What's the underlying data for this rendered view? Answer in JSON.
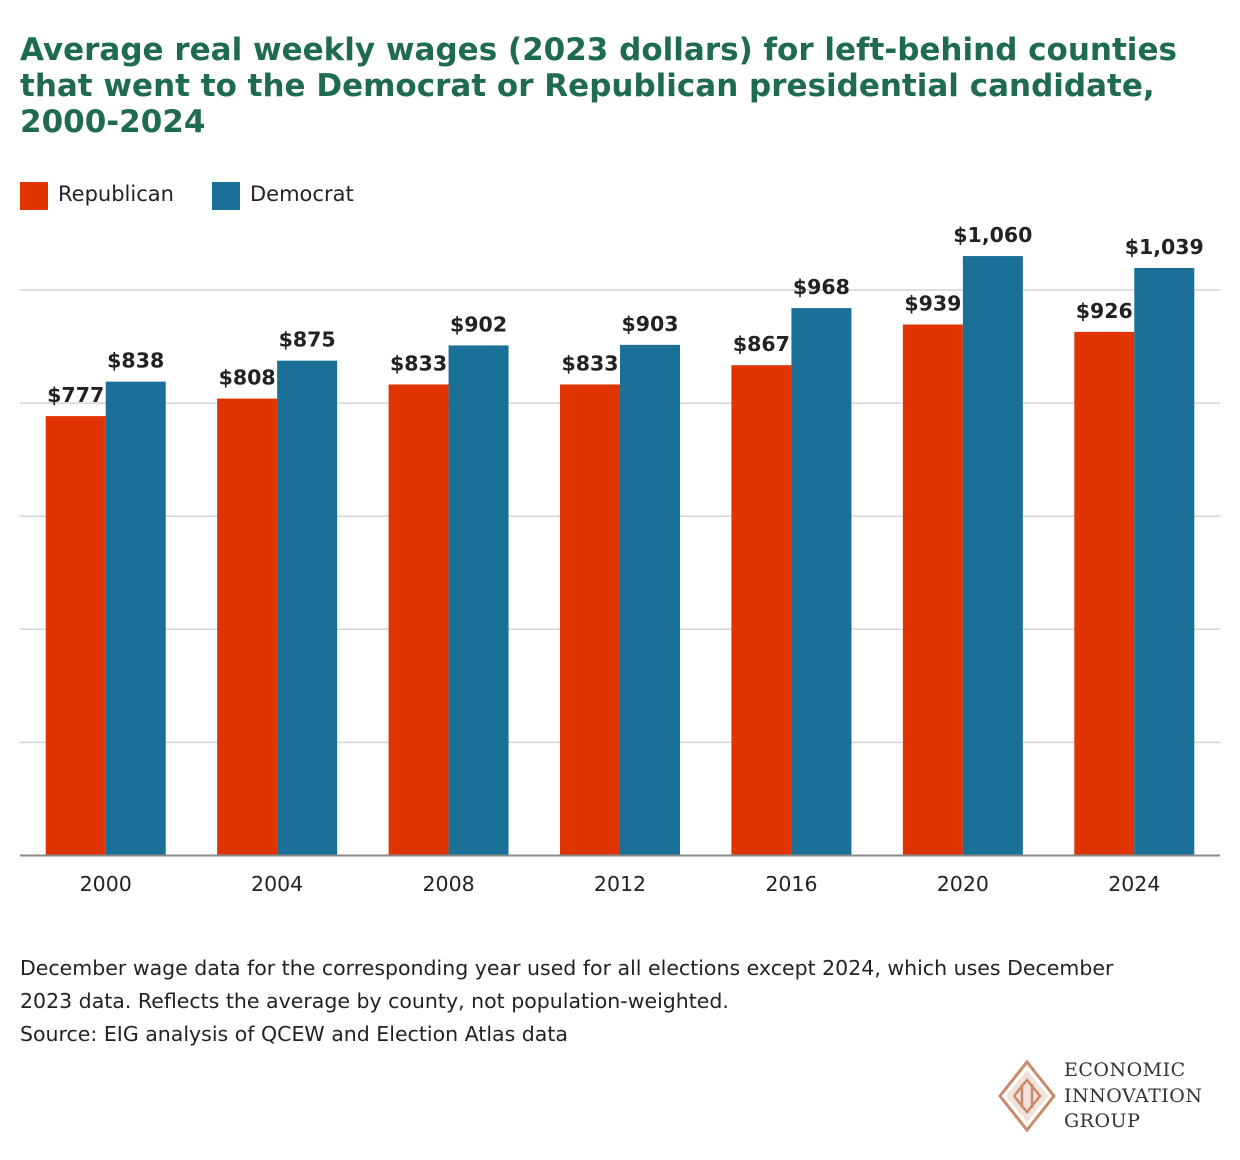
{
  "title": "Average real weekly wages (2023 dollars) for left-behind counties that went to the Democrat or Republican presidential candidate, 2000-2024",
  "legend": [
    {
      "label": "Republican",
      "color": "#e03403"
    },
    {
      "label": "Democrat",
      "color": "#1a7096"
    }
  ],
  "chart_data": {
    "type": "bar",
    "title": "Average real weekly wages (2023 dollars) for left-behind counties that went to the Democrat or Republican presidential candidate, 2000-2024",
    "categories": [
      "2000",
      "2004",
      "2008",
      "2012",
      "2016",
      "2020",
      "2024"
    ],
    "series": [
      {
        "name": "Republican",
        "color": "#e03403",
        "values": [
          777,
          808,
          833,
          833,
          867,
          939,
          926
        ],
        "labels": [
          "$777",
          "$808",
          "$833",
          "$833",
          "$867",
          "$939",
          "$926"
        ]
      },
      {
        "name": "Democrat",
        "color": "#1a7096",
        "values": [
          838,
          875,
          902,
          903,
          968,
          1060,
          1039
        ],
        "labels": [
          "$838",
          "$875",
          "$902",
          "$903",
          "$968",
          "$1,060",
          "$1,039"
        ]
      }
    ],
    "xlabel": "",
    "ylabel": "",
    "ylim": [
      0,
      1125
    ],
    "y_gridlines": [
      200,
      400,
      600,
      800,
      1000
    ],
    "y_tick_labels_shown": false,
    "grid": true,
    "legend_position": "top-left"
  },
  "notes": {
    "line1": "December wage data for the corresponding year used for all elections except 2024, which uses December",
    "line2": "2023 data. Reflects the average by county, not population-weighted.",
    "source": "Source: EIG analysis of QCEW and Election Atlas data"
  },
  "logo": {
    "line1": "ECONOMIC",
    "line2": "INNOVATION",
    "line3": "GROUP",
    "color": "#c98b6b"
  }
}
